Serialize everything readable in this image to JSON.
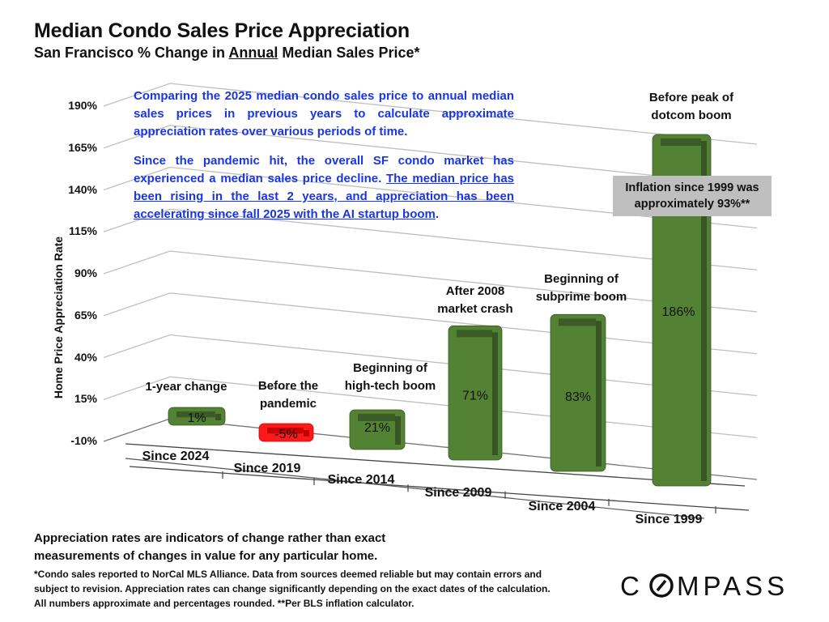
{
  "header": {
    "title": "Median Condo Sales Price Appreciation",
    "subtitle_pre": "San Francisco % Change in ",
    "subtitle_underlined": "Annual",
    "subtitle_post": " Median Sales Price*"
  },
  "note": {
    "para1": "Comparing the 2025 median condo sales price to annual median sales prices in previous years to calculate approximate appreciation rates over various periods of time.",
    "para2_plain": "Since the pandemic hit, the overall SF condo market has experienced a median sales price decline. ",
    "para2_underlined": "The median price has been rising in the last 2 years, and appreciation has been accelerating since fall 2025 with the AI startup boom",
    "para2_end": "."
  },
  "inflation_box": {
    "line1": "Inflation since 1999 was",
    "line2": "approximately 93%**"
  },
  "footer": {
    "line1": "Appreciation rates are indicators of change rather than exact",
    "line2": "measurements of changes in value for any particular home.",
    "fine_print": "*Condo sales reported to NorCal MLS Alliance. Data from sources deemed reliable but may contain errors and subject to revision. Appreciation rates can change significantly depending on the exact dates of the calculation. All numbers  approximate and percentages rounded. **Per BLS inflation calculator."
  },
  "logo": {
    "text": "COMPASS"
  },
  "colors": {
    "positive_bar": "#548235",
    "positive_bar_dark": "#375623",
    "negative_bar": "#ff1a1a",
    "negative_bar_dark": "#c00000",
    "note_text": "#1a35e6",
    "gridline": "#bfbfbf"
  },
  "chart_data": {
    "type": "bar",
    "title": "Median Condo Sales Price Appreciation",
    "subtitle": "San Francisco % Change in Annual Median Sales Price*",
    "xlabel": "",
    "ylabel": "Home Price Appreciation Rate",
    "ylim": [
      -10,
      190
    ],
    "yticks": [
      "190%",
      "165%",
      "140%",
      "115%",
      "90%",
      "65%",
      "40%",
      "15%",
      "-10%"
    ],
    "grid": true,
    "categories": [
      "Since 2024",
      "Since 2019",
      "Since 2014",
      "Since 2009",
      "Since 2004",
      "Since 1999"
    ],
    "values": [
      1,
      -5,
      21,
      71,
      83,
      186
    ],
    "data_labels": [
      "1%",
      "-5%",
      "21%",
      "71%",
      "83%",
      "186%"
    ],
    "annotations": [
      [
        "1-year change"
      ],
      [
        "Before the",
        "pandemic"
      ],
      [
        "Beginning of",
        "high-tech boom"
      ],
      [
        "After 2008",
        "market crash"
      ],
      [
        "Beginning of",
        "subprime boom"
      ],
      [
        "Before peak of",
        "dotcom boom"
      ]
    ]
  }
}
